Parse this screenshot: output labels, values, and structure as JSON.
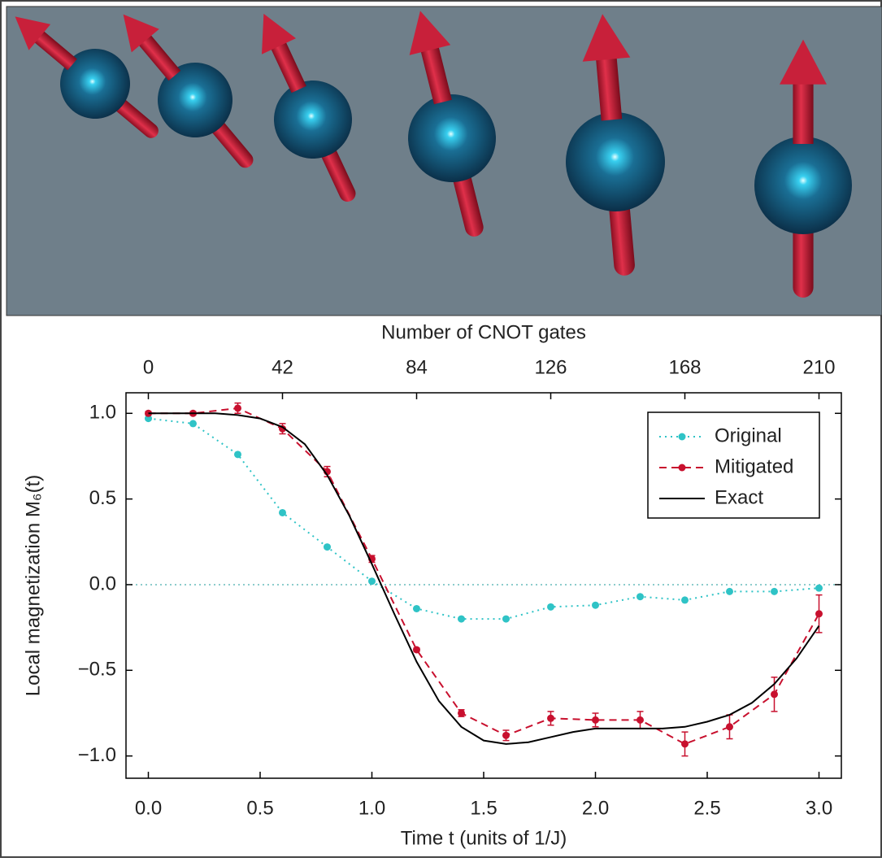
{
  "chart_data": {
    "type": "line",
    "x_label": "Time t (units of 1/J)",
    "y_label": "Local magnetization M₆(t)",
    "x2_label": "Number of CNOT gates",
    "xlim": [
      -0.1,
      3.1
    ],
    "xticks": [
      {
        "value": 0,
        "label": "0.0"
      },
      {
        "value": 0.5,
        "label": "0.5"
      },
      {
        "value": 1,
        "label": "1.0"
      },
      {
        "value": 1.5,
        "label": "1.5"
      },
      {
        "value": 2,
        "label": "2.0"
      },
      {
        "value": 2.5,
        "label": "2.5"
      },
      {
        "value": 3,
        "label": "3.0"
      }
    ],
    "x2lim": [
      -7,
      217
    ],
    "x2ticks": [
      0,
      42,
      84,
      126,
      168,
      210
    ],
    "ylim": [
      -1.13,
      1.12
    ],
    "yticks": [
      {
        "value": -1,
        "label": "−1.0"
      },
      {
        "value": -0.5,
        "label": "−0.5"
      },
      {
        "value": 0,
        "label": "0.0"
      },
      {
        "value": 0.5,
        "label": "0.5"
      },
      {
        "value": 1,
        "label": "1.0"
      }
    ],
    "hline": 0,
    "legend": "upper right",
    "series": [
      {
        "name": "Original",
        "color": "#2fc3c6",
        "style": "dotted",
        "markers": true,
        "x": [
          0,
          0.2,
          0.4,
          0.6,
          0.8,
          1.0,
          1.2,
          1.4,
          1.6,
          1.8,
          2.0,
          2.2,
          2.4,
          2.6,
          2.8,
          3.0
        ],
        "values": [
          0.97,
          0.94,
          0.76,
          0.42,
          0.22,
          0.02,
          -0.14,
          -0.2,
          -0.2,
          -0.13,
          -0.12,
          -0.07,
          -0.09,
          -0.04,
          -0.04,
          -0.02
        ]
      },
      {
        "name": "Mitigated",
        "color": "#c8102e",
        "style": "dashed",
        "markers": true,
        "x": [
          0,
          0.2,
          0.4,
          0.6,
          0.8,
          1.0,
          1.2,
          1.4,
          1.6,
          1.8,
          2.0,
          2.2,
          2.4,
          2.6,
          2.8,
          3.0
        ],
        "values": [
          1.0,
          1.0,
          1.03,
          0.91,
          0.66,
          0.15,
          -0.38,
          -0.75,
          -0.88,
          -0.78,
          -0.79,
          -0.79,
          -0.93,
          -0.83,
          -0.64,
          -0.17
        ],
        "errors": [
          0.01,
          0.01,
          0.03,
          0.03,
          0.03,
          0.02,
          0.01,
          0.02,
          0.03,
          0.04,
          0.04,
          0.05,
          0.07,
          0.07,
          0.1,
          0.11
        ]
      },
      {
        "name": "Exact",
        "color": "#000000",
        "style": "solid",
        "markers": false,
        "x": [
          0,
          0.1,
          0.2,
          0.3,
          0.4,
          0.5,
          0.6,
          0.7,
          0.8,
          0.9,
          1.0,
          1.1,
          1.2,
          1.3,
          1.4,
          1.5,
          1.6,
          1.7,
          1.8,
          1.9,
          2.0,
          2.1,
          2.2,
          2.3,
          2.4,
          2.5,
          2.6,
          2.7,
          2.8,
          2.9,
          3.0
        ],
        "values": [
          1.0,
          1.0,
          1.0,
          1.0,
          0.99,
          0.97,
          0.92,
          0.82,
          0.64,
          0.4,
          0.12,
          -0.17,
          -0.45,
          -0.68,
          -0.83,
          -0.91,
          -0.93,
          -0.92,
          -0.89,
          -0.86,
          -0.84,
          -0.84,
          -0.84,
          -0.84,
          -0.83,
          -0.8,
          -0.76,
          -0.69,
          -0.58,
          -0.43,
          -0.24
        ]
      }
    ]
  }
}
